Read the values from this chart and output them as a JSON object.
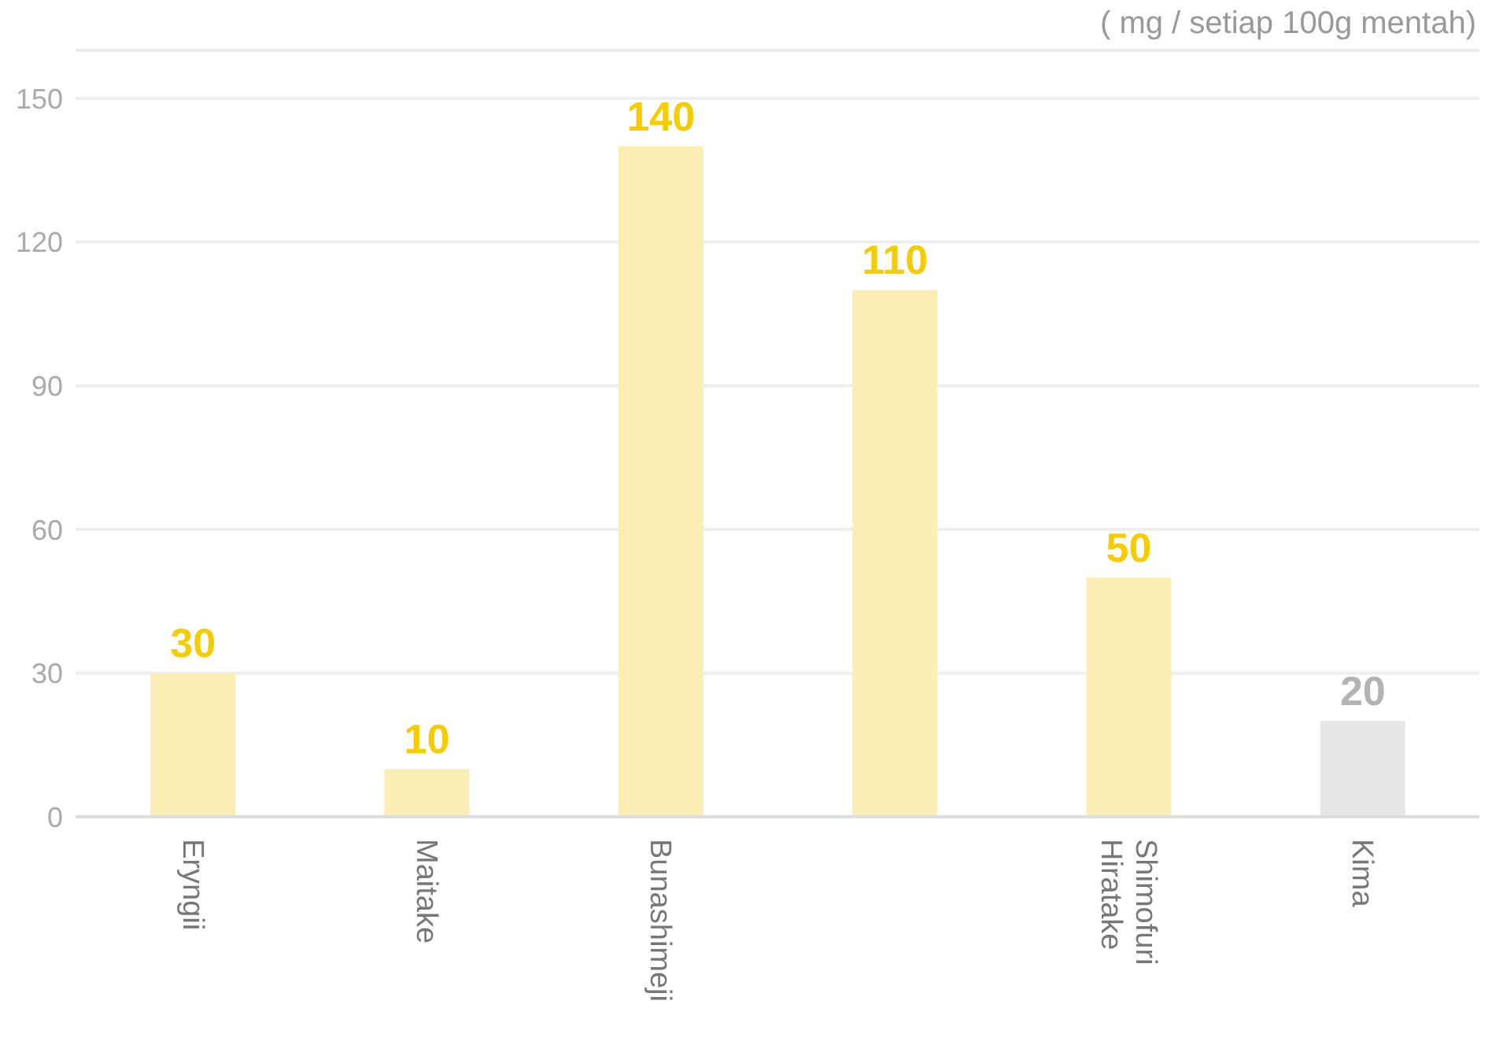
{
  "chart_data": {
    "type": "bar",
    "ylabel": "( mg / setiap 100g mentah)",
    "categories": [
      "Eryngii",
      "Maitake",
      "Bunashimeji",
      null,
      "Shimofuri Hiratake",
      "Kima"
    ],
    "values": [
      30,
      10,
      140,
      110,
      50,
      20
    ],
    "colors": [
      "#faeeb5",
      "#faeeb5",
      "#faeeb5",
      "#faeeb5",
      "#faeeb5",
      "#e6e6e6"
    ],
    "ylim": [
      0,
      160
    ],
    "yticks": [
      0,
      30,
      60,
      90,
      120,
      150
    ],
    "grid": "y",
    "data_labels": true,
    "legend": false
  }
}
